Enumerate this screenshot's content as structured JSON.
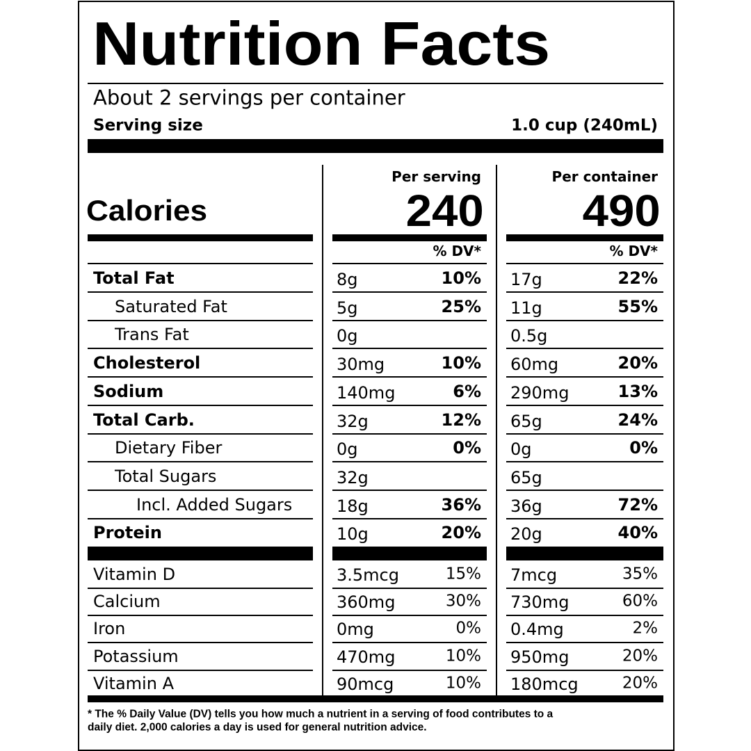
{
  "title": "Nutrition Facts",
  "servings": "About 2 servings per container",
  "serving_size": {
    "label": "Serving size",
    "value": "1.0 cup (240mL)"
  },
  "columns": [
    {
      "header": "Per serving",
      "calories": "240",
      "dv_header": "% DV*"
    },
    {
      "header": "Per container",
      "calories": "490",
      "dv_header": "% DV*"
    }
  ],
  "calories_label": "Calories",
  "nutrients": [
    {
      "name": "Total Fat",
      "level": 0,
      "serving": {
        "amount": "8g",
        "dv": "10%"
      },
      "container": {
        "amount": "17g",
        "dv": "22%"
      }
    },
    {
      "name": "Saturated Fat",
      "level": 1,
      "serving": {
        "amount": "5g",
        "dv": "25%"
      },
      "container": {
        "amount": "11g",
        "dv": "55%"
      }
    },
    {
      "name": "Trans Fat",
      "level": 1,
      "serving": {
        "amount": "0g"
      },
      "container": {
        "amount": "0.5g"
      }
    },
    {
      "name": "Cholesterol",
      "level": 0,
      "serving": {
        "amount": "30mg",
        "dv": "10%"
      },
      "container": {
        "amount": "60mg",
        "dv": "20%"
      }
    },
    {
      "name": "Sodium",
      "level": 0,
      "serving": {
        "amount": "140mg",
        "dv": "6%"
      },
      "container": {
        "amount": "290mg",
        "dv": "13%"
      }
    },
    {
      "name": "Total Carb.",
      "level": 0,
      "serving": {
        "amount": "32g",
        "dv": "12%"
      },
      "container": {
        "amount": "65g",
        "dv": "24%"
      }
    },
    {
      "name": "Dietary Fiber",
      "level": 1,
      "serving": {
        "amount": "0g",
        "dv": "0%"
      },
      "container": {
        "amount": "0g",
        "dv": "0%"
      }
    },
    {
      "name": "Total Sugars",
      "level": 1,
      "serving": {
        "amount": "32g"
      },
      "container": {
        "amount": "65g"
      }
    },
    {
      "name": "Incl. Added Sugars",
      "level": 2,
      "serving": {
        "amount": "18g",
        "dv": "36%"
      },
      "container": {
        "amount": "36g",
        "dv": "72%"
      }
    },
    {
      "name": "Protein",
      "level": 0,
      "serving": {
        "amount": "10g",
        "dv": "20%"
      },
      "container": {
        "amount": "20g",
        "dv": "40%"
      }
    }
  ],
  "vitamins": [
    {
      "name": "Vitamin D",
      "serving": {
        "amount": "3.5mcg",
        "dv": "15%"
      },
      "container": {
        "amount": "7mcg",
        "dv": "35%"
      }
    },
    {
      "name": "Calcium",
      "serving": {
        "amount": "360mg",
        "dv": "30%"
      },
      "container": {
        "amount": "730mg",
        "dv": "60%"
      }
    },
    {
      "name": "Iron",
      "serving": {
        "amount": "0mg",
        "dv": "0%"
      },
      "container": {
        "amount": "0.4mg",
        "dv": "2%"
      }
    },
    {
      "name": "Potassium",
      "serving": {
        "amount": "470mg",
        "dv": "10%"
      },
      "container": {
        "amount": "950mg",
        "dv": "20%"
      }
    },
    {
      "name": "Vitamin A",
      "serving": {
        "amount": "90mcg",
        "dv": "10%"
      },
      "container": {
        "amount": "180mcg",
        "dv": "20%"
      }
    }
  ],
  "footnote": [
    "* The % Daily Value (DV) tells you how much a nutrient in a serving of food contributes to a",
    "daily diet. 2,000 calories a day is used for general nutrition advice."
  ]
}
